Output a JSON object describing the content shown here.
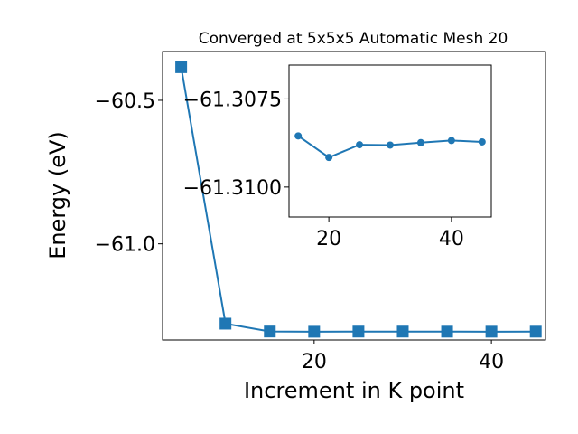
{
  "chart_data": [
    {
      "type": "line",
      "title": "Converged at 5x5x5 Automatic Mesh 20",
      "xlabel": "Increment in K point",
      "ylabel": "Energy (eV)",
      "xlim": [
        2.9,
        46.1
      ],
      "ylim": [
        -61.335,
        -60.33
      ],
      "xticks": [
        20,
        40
      ],
      "yticks": [
        -61.0,
        -60.5
      ],
      "xtick_labels": [
        "20",
        "40"
      ],
      "ytick_labels": [
        "−61.0",
        "−60.5"
      ],
      "grid": false,
      "color": "#1f77b4",
      "marker": "square",
      "series": [
        {
          "x": [
            5,
            10,
            15,
            20,
            25,
            30,
            35,
            40,
            45
          ],
          "y": [
            -60.3847,
            -61.2782,
            -61.3056,
            -61.3063,
            -61.3058,
            -61.3058,
            -61.306,
            -61.3061,
            -61.306
          ]
        }
      ]
    },
    {
      "type": "line",
      "title": "",
      "xlabel": "",
      "ylabel": "",
      "xlim": [
        13.5,
        46.5
      ],
      "ylim": [
        -61.31085,
        -61.30654
      ],
      "xticks": [
        20,
        40
      ],
      "yticks": [
        -61.31,
        -61.3075
      ],
      "xtick_labels": [
        "20",
        "40"
      ],
      "ytick_labels": [
        "−61.3100",
        "−61.3075"
      ],
      "grid": false,
      "color": "#1f77b4",
      "marker": "circle",
      "series": [
        {
          "x": [
            15,
            20,
            25,
            30,
            35,
            40,
            45
          ],
          "y": [
            -61.30855,
            -61.30916,
            -61.3088,
            -61.30881,
            -61.30874,
            -61.30868,
            -61.30872
          ]
        }
      ]
    }
  ]
}
